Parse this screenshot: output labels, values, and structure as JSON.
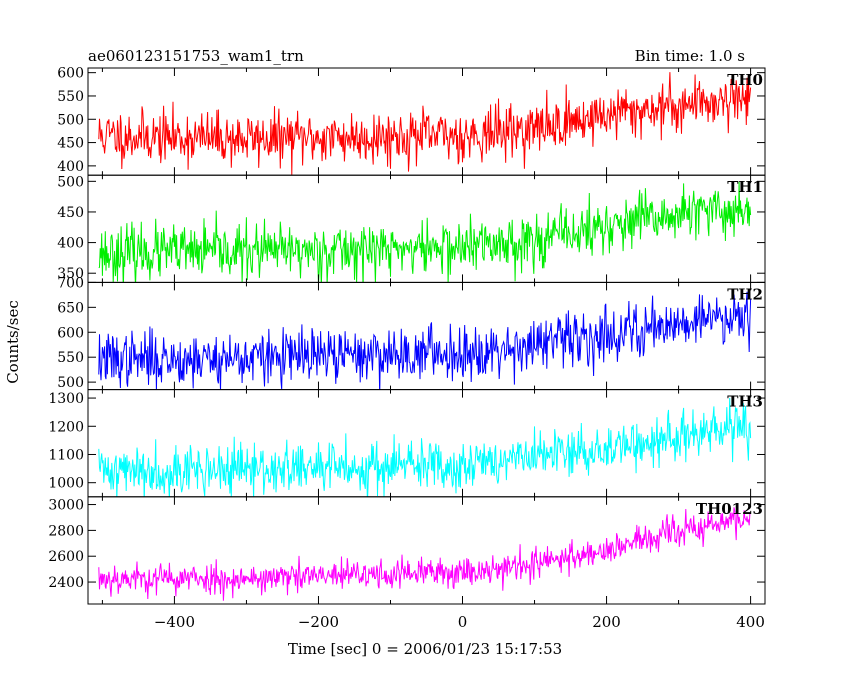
{
  "chart_data": {
    "type": "line",
    "header_left": "ae060123151753_wam1_trn",
    "header_right": "Bin time: 1.0 s",
    "ylabel": "Counts/sec",
    "xlabel": "Time [sec] 0 = 2006/01/23 15:17:53",
    "xlim": [
      -520,
      420
    ],
    "x_range": [
      -505,
      400
    ],
    "bin_time": 1.0,
    "x_ticks": [
      -400,
      -200,
      0,
      200,
      400
    ],
    "x_tick_labels": [
      "−400",
      "−200",
      "0",
      "200",
      "400"
    ],
    "panels": [
      {
        "name": "TH0",
        "color": "#ff0000",
        "ylim": [
          380,
          610
        ],
        "y_ticks": [
          400,
          450,
          500,
          550,
          600
        ],
        "y_tick_labels": [
          "400",
          "450",
          "500",
          "550",
          "600"
        ],
        "trend": [
          [
            -505,
            465
          ],
          [
            -300,
            458
          ],
          [
            0,
            465
          ],
          [
            100,
            480
          ],
          [
            200,
            510
          ],
          [
            300,
            530
          ],
          [
            400,
            550
          ]
        ],
        "noise": 28,
        "seed": 11
      },
      {
        "name": "TH1",
        "color": "#00ee00",
        "ylim": [
          335,
          510
        ],
        "y_ticks": [
          350,
          400,
          450,
          500
        ],
        "y_tick_labels": [
          "350",
          "400",
          "450",
          "500"
        ],
        "trend": [
          [
            -505,
            383
          ],
          [
            -300,
            385
          ],
          [
            0,
            392
          ],
          [
            100,
            405
          ],
          [
            200,
            425
          ],
          [
            300,
            445
          ],
          [
            400,
            455
          ]
        ],
        "noise": 22,
        "seed": 23
      },
      {
        "name": "TH2",
        "color": "#0000ff",
        "ylim": [
          485,
          700
        ],
        "y_ticks": [
          500,
          550,
          600,
          650,
          700
        ],
        "y_tick_labels": [
          "500",
          "550",
          "600",
          "650",
          "700"
        ],
        "trend": [
          [
            -505,
            545
          ],
          [
            -300,
            548
          ],
          [
            0,
            560
          ],
          [
            100,
            575
          ],
          [
            200,
            595
          ],
          [
            300,
            620
          ],
          [
            400,
            640
          ]
        ],
        "noise": 27,
        "seed": 37
      },
      {
        "name": "TH3",
        "color": "#00ffff",
        "ylim": [
          950,
          1330
        ],
        "y_ticks": [
          1000,
          1100,
          1200,
          1300
        ],
        "y_tick_labels": [
          "1000",
          "1100",
          "1200",
          "1300"
        ],
        "trend": [
          [
            -505,
            1045
          ],
          [
            -300,
            1045
          ],
          [
            0,
            1065
          ],
          [
            100,
            1090
          ],
          [
            200,
            1120
          ],
          [
            300,
            1160
          ],
          [
            400,
            1200
          ]
        ],
        "noise": 45,
        "seed": 41
      },
      {
        "name": "TH0123",
        "color": "#ff00ff",
        "ylim": [
          2230,
          3060
        ],
        "y_ticks": [
          2400,
          2600,
          2800,
          3000
        ],
        "y_tick_labels": [
          "2400",
          "2600",
          "2800",
          "3000"
        ],
        "trend": [
          [
            -505,
            2430
          ],
          [
            -300,
            2425
          ],
          [
            0,
            2480
          ],
          [
            100,
            2540
          ],
          [
            200,
            2650
          ],
          [
            300,
            2790
          ],
          [
            400,
            2900
          ]
        ],
        "noise": 60,
        "seed": 53
      }
    ]
  }
}
